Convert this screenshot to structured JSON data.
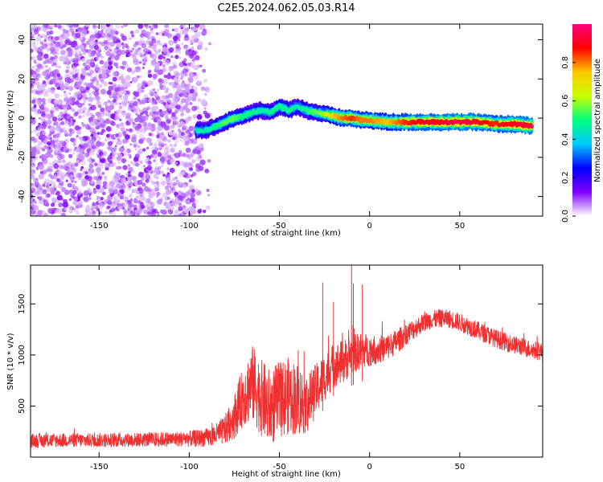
{
  "figure_title": "C2E5.2024.062.05.03.R14",
  "chart_data": [
    {
      "type": "heatmap",
      "title": "C2E5.2024.062.05.03.R14",
      "xlabel": "Height of straight line (km)",
      "ylabel": "Frequency (Hz)",
      "xlim": [
        -188,
        96
      ],
      "ylim": [
        -50,
        48
      ],
      "xticks": [
        -150,
        -100,
        -50,
        0,
        50
      ],
      "yticks": [
        -40,
        -20,
        0,
        20,
        40
      ],
      "colorbar": {
        "label": "Normalized spectral amplitude",
        "range": [
          0,
          1
        ],
        "ticks": [
          0.0,
          0.2,
          0.4,
          0.6,
          0.8
        ],
        "colormap": [
          "#ffffff",
          "#8000ff",
          "#0000ff",
          "#00c8ff",
          "#00ff80",
          "#c8ff00",
          "#ffc800",
          "#ff0000",
          "#ff0080"
        ]
      },
      "noise_region_x": [
        -188,
        -88
      ],
      "ridge": [
        {
          "x": -96,
          "y": -6.5,
          "amp": 0.45
        },
        {
          "x": -90,
          "y": -6,
          "amp": 0.45
        },
        {
          "x": -85,
          "y": -4,
          "amp": 0.5
        },
        {
          "x": -80,
          "y": -2,
          "amp": 0.55
        },
        {
          "x": -75,
          "y": 0,
          "amp": 0.55
        },
        {
          "x": -70,
          "y": 1,
          "amp": 0.5
        },
        {
          "x": -65,
          "y": 3,
          "amp": 0.5
        },
        {
          "x": -60,
          "y": 4,
          "amp": 0.45
        },
        {
          "x": -55,
          "y": 3,
          "amp": 0.5
        },
        {
          "x": -50,
          "y": 6,
          "amp": 0.5
        },
        {
          "x": -45,
          "y": 4,
          "amp": 0.5
        },
        {
          "x": -40,
          "y": 6,
          "amp": 0.45
        },
        {
          "x": -35,
          "y": 4,
          "amp": 0.5
        },
        {
          "x": -30,
          "y": 3,
          "amp": 0.55
        },
        {
          "x": -25,
          "y": 2,
          "amp": 0.6
        },
        {
          "x": -20,
          "y": 1,
          "amp": 0.75
        },
        {
          "x": -15,
          "y": 0,
          "amp": 0.8
        },
        {
          "x": -10,
          "y": 0,
          "amp": 0.85
        },
        {
          "x": -5,
          "y": -1,
          "amp": 0.8
        },
        {
          "x": 0,
          "y": -1,
          "amp": 0.8
        },
        {
          "x": 10,
          "y": -2,
          "amp": 0.75
        },
        {
          "x": 20,
          "y": -2,
          "amp": 0.85
        },
        {
          "x": 30,
          "y": -2,
          "amp": 0.9
        },
        {
          "x": 40,
          "y": -2,
          "amp": 0.9
        },
        {
          "x": 50,
          "y": -2,
          "amp": 0.95
        },
        {
          "x": 60,
          "y": -2,
          "amp": 0.9
        },
        {
          "x": 70,
          "y": -3,
          "amp": 0.85
        },
        {
          "x": 80,
          "y": -3,
          "amp": 0.9
        },
        {
          "x": 90,
          "y": -4,
          "amp": 0.95
        }
      ]
    },
    {
      "type": "line",
      "xlabel": "Height of straight line (km)",
      "ylabel": "SNR (10 * v/v)",
      "xlim": [
        -188,
        96
      ],
      "ylim": [
        0,
        1880
      ],
      "xticks": [
        -150,
        -100,
        -50,
        0,
        50
      ],
      "yticks": [
        500,
        1000,
        1500
      ],
      "line_color": "#f03030",
      "series": [
        {
          "x": [
            -188,
            -170,
            -150,
            -130,
            -110,
            -100,
            -90,
            -85,
            -80,
            -75,
            -70,
            -65,
            -60,
            -55,
            -50,
            -45,
            -40,
            -35,
            -30,
            -25,
            -20,
            -15,
            -10,
            -5,
            0,
            5,
            10,
            15,
            20,
            25,
            30,
            35,
            40,
            45,
            50,
            55,
            60,
            65,
            70,
            75,
            80,
            85,
            90,
            96
          ],
          "y": [
            160,
            165,
            165,
            170,
            175,
            180,
            190,
            220,
            270,
            400,
            600,
            720,
            580,
            480,
            560,
            600,
            570,
            520,
            650,
            780,
            900,
            930,
            1000,
            1040,
            1050,
            1050,
            1080,
            1130,
            1200,
            1260,
            1320,
            1350,
            1360,
            1350,
            1320,
            1280,
            1240,
            1200,
            1160,
            1130,
            1100,
            1080,
            1050,
            1030
          ],
          "spread": [
            70,
            70,
            70,
            70,
            75,
            80,
            90,
            110,
            150,
            220,
            300,
            380,
            380,
            380,
            380,
            380,
            360,
            300,
            260,
            240,
            220,
            220,
            200,
            180,
            160,
            140,
            130,
            120,
            110,
            100,
            90,
            90,
            90,
            90,
            90,
            90,
            90,
            90,
            90,
            90,
            90,
            90,
            90,
            90
          ]
        }
      ],
      "spikes": [
        {
          "x": -26,
          "y": 1710
        },
        {
          "x": -10,
          "y": 1880
        },
        {
          "x": -9,
          "y": 1700
        },
        {
          "x": -20,
          "y": 1520
        },
        {
          "x": -4,
          "y": 1690
        }
      ]
    }
  ]
}
